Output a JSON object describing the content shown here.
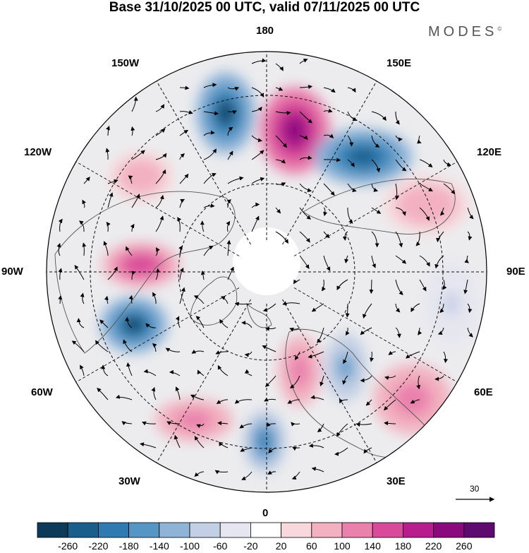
{
  "title": "Base 31/10/2025 00 UTC, valid 07/11/2025 00 UTC",
  "brand": "MODES",
  "brand_mark": "©",
  "longitude_labels": {
    "n180": "180",
    "n150e": "150E",
    "n120e": "120E",
    "n90e": "90E",
    "n60e": "60E",
    "n30e": "30E",
    "n0": "0",
    "n30w": "30W",
    "n60w": "60W",
    "n90w": "90W",
    "n120w": "120W",
    "n150w": "150W"
  },
  "vector_scale": {
    "value": "30"
  },
  "colorbar": {
    "labels": [
      "-260",
      "-220",
      "-180",
      "-140",
      "-100",
      "-60",
      "-20",
      "20",
      "60",
      "100",
      "140",
      "180",
      "220",
      "260"
    ],
    "colors": [
      "#0d3a59",
      "#1a5e8c",
      "#2f7ab0",
      "#5596c5",
      "#8fb4d8",
      "#c3cfe4",
      "#e6e6f0",
      "#ffffff",
      "#f8d8dc",
      "#f2b0c0",
      "#ea80ac",
      "#d94b9a",
      "#b81d8e",
      "#8a0a7e",
      "#5e0a6e"
    ]
  },
  "chart_data": {
    "type": "heatmap",
    "projection": "north-polar-stereographic",
    "title": "Base 31/10/2025 00 UTC, valid 07/11/2025 00 UTC",
    "units_note": "filled anomaly field with wind vectors",
    "levels": [
      -260,
      -220,
      -180,
      -140,
      -100,
      -60,
      -20,
      20,
      60,
      100,
      140,
      180,
      220,
      260
    ],
    "reference_vector": 30,
    "anomaly_centers": [
      {
        "region": "near 160W",
        "sign": "negative",
        "peak": -260
      },
      {
        "region": "near 170E",
        "sign": "positive",
        "peak": 260
      },
      {
        "region": "near 135E",
        "sign": "negative",
        "peak": -220
      },
      {
        "region": "near 105E",
        "sign": "positive",
        "peak": 100
      },
      {
        "region": "near 90E",
        "sign": "negative",
        "peak": -60
      },
      {
        "region": "near 60E",
        "sign": "positive",
        "peak": 140
      },
      {
        "region": "near 40E",
        "sign": "negative",
        "peak": -140
      },
      {
        "region": "near 30E",
        "sign": "positive",
        "peak": 140
      },
      {
        "region": "near 10W",
        "sign": "negative",
        "peak": -180
      },
      {
        "region": "near 40W",
        "sign": "positive",
        "peak": 140
      },
      {
        "region": "near 70W",
        "sign": "negative",
        "peak": -260
      },
      {
        "region": "near 95W",
        "sign": "positive",
        "peak": 180
      },
      {
        "region": "near 120W",
        "sign": "positive",
        "peak": 100
      }
    ]
  }
}
